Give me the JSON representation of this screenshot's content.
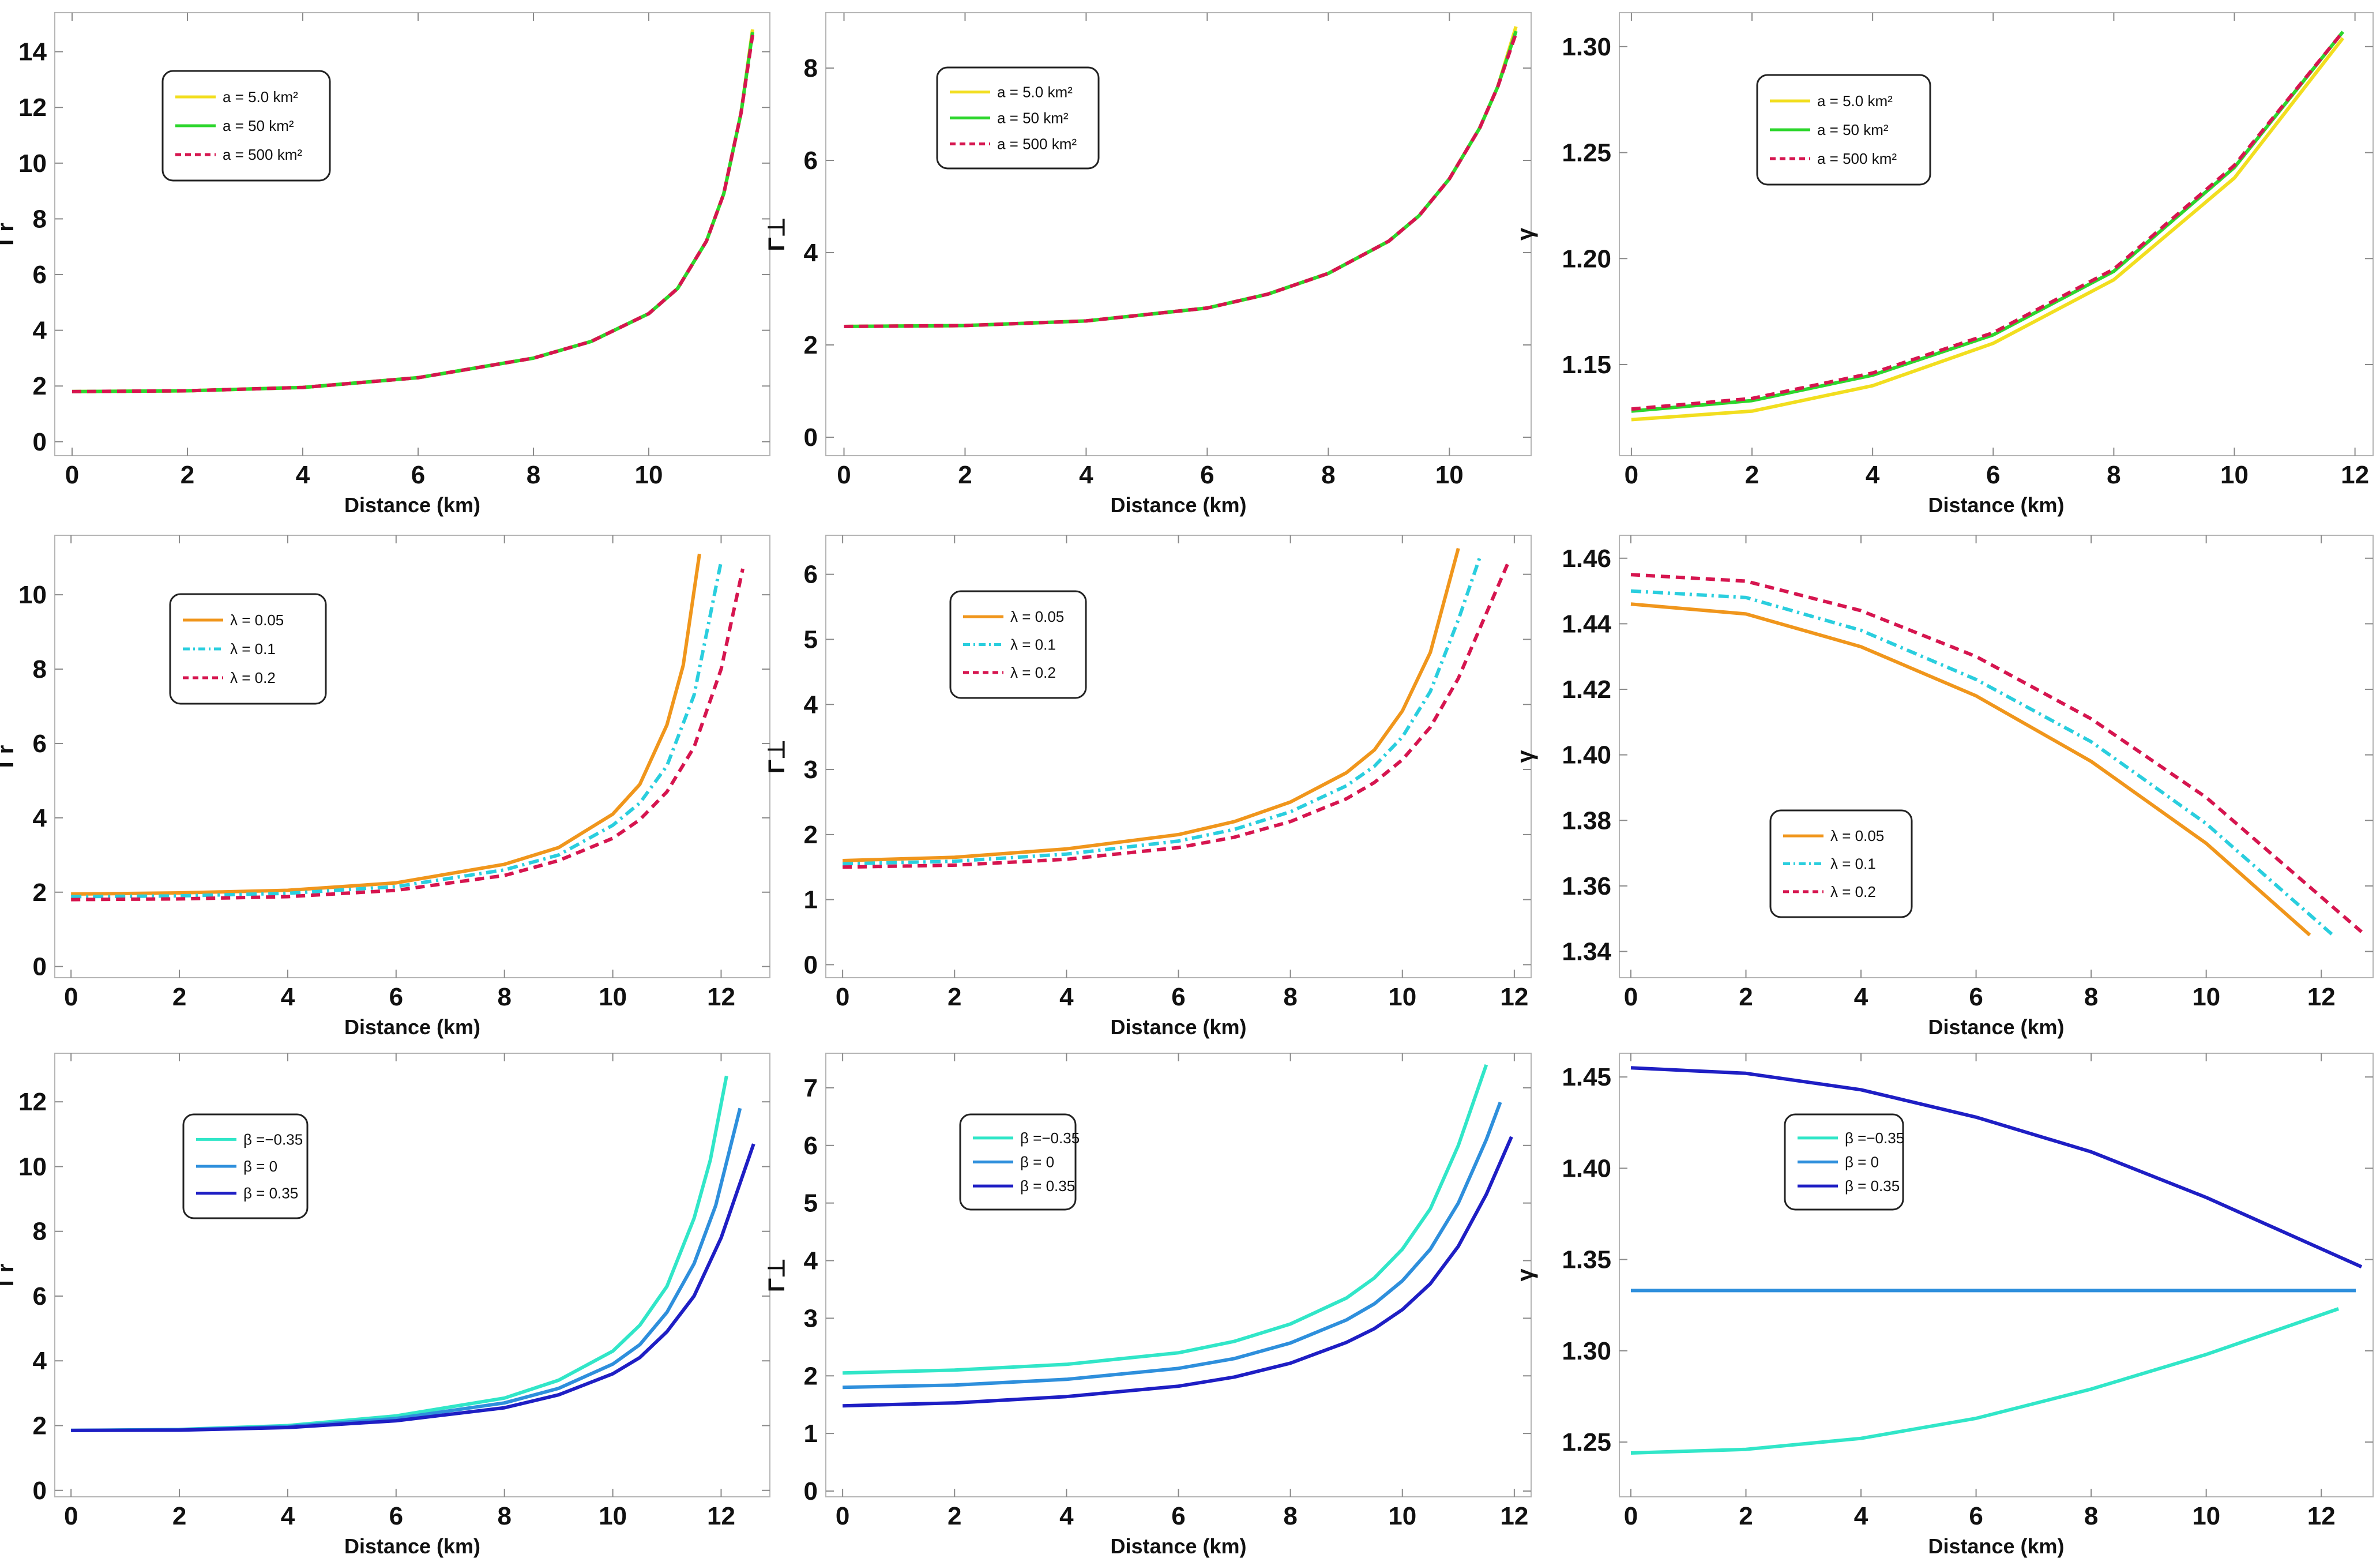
{
  "colors": {
    "yellow": "#F2DE1F",
    "green": "#2CD62C",
    "crimson": "#D6154F",
    "orange": "#F0961C",
    "cyan": "#2ACEDE",
    "aqua": "#31E6C8",
    "azure": "#2E8FDC",
    "navy": "#1E1EC4"
  },
  "chart_data": [
    {
      "type": "line",
      "ylabel": "Γr",
      "xlabel": "Distance (km)",
      "xlim": [
        -0.3,
        12.1
      ],
      "ylim": [
        -0.5,
        15.4
      ],
      "xticks": [
        0,
        2,
        4,
        6,
        8,
        10
      ],
      "yticks": [
        0,
        2,
        4,
        6,
        8,
        10,
        12,
        14
      ],
      "legend": "top-left",
      "series": [
        {
          "name": "a = 5.0 km²",
          "color": "#F2DE1F",
          "dash": "solid",
          "x": [
            0,
            2,
            4,
            6,
            8,
            9,
            10,
            10.5,
            11,
            11.3,
            11.6,
            11.8
          ],
          "y": [
            1.8,
            1.83,
            1.95,
            2.3,
            3.0,
            3.6,
            4.6,
            5.5,
            7.2,
            8.9,
            11.8,
            14.8
          ]
        },
        {
          "name": "a = 50 km²",
          "color": "#2CD62C",
          "dash": "solid",
          "x": [
            0,
            2,
            4,
            6,
            8,
            9,
            10,
            10.5,
            11,
            11.3,
            11.6,
            11.8
          ],
          "y": [
            1.8,
            1.83,
            1.95,
            2.3,
            3.0,
            3.6,
            4.6,
            5.5,
            7.2,
            8.9,
            11.8,
            14.7
          ]
        },
        {
          "name": "a = 500 km²",
          "color": "#D6154F",
          "dash": "dashed",
          "x": [
            0,
            2,
            4,
            6,
            8,
            9,
            10,
            10.5,
            11,
            11.3,
            11.6,
            11.8
          ],
          "y": [
            1.8,
            1.83,
            1.95,
            2.3,
            3.0,
            3.6,
            4.6,
            5.5,
            7.2,
            8.9,
            11.8,
            14.6
          ]
        }
      ]
    },
    {
      "type": "line",
      "ylabel": "Γ⊥",
      "xlabel": "Distance (km)",
      "xlim": [
        -0.3,
        11.35
      ],
      "ylim": [
        -0.4,
        9.2
      ],
      "xticks": [
        0,
        2,
        4,
        6,
        8,
        10
      ],
      "yticks": [
        0,
        2,
        4,
        6,
        8
      ],
      "legend": "top-left",
      "series": [
        {
          "name": "a = 5.0 km²",
          "color": "#F2DE1F",
          "dash": "solid",
          "x": [
            0,
            2,
            4,
            6,
            7,
            8,
            9,
            9.5,
            10,
            10.5,
            10.8,
            11.1
          ],
          "y": [
            2.4,
            2.42,
            2.52,
            2.8,
            3.1,
            3.55,
            4.25,
            4.8,
            5.6,
            6.7,
            7.6,
            8.9
          ]
        },
        {
          "name": "a = 50 km²",
          "color": "#2CD62C",
          "dash": "solid",
          "x": [
            0,
            2,
            4,
            6,
            7,
            8,
            9,
            9.5,
            10,
            10.5,
            10.8,
            11.1
          ],
          "y": [
            2.4,
            2.42,
            2.52,
            2.8,
            3.1,
            3.55,
            4.25,
            4.8,
            5.6,
            6.7,
            7.6,
            8.8
          ]
        },
        {
          "name": "a = 500 km²",
          "color": "#D6154F",
          "dash": "dashed",
          "x": [
            0,
            2,
            4,
            6,
            7,
            8,
            9,
            9.5,
            10,
            10.5,
            10.8,
            11.1
          ],
          "y": [
            2.4,
            2.42,
            2.52,
            2.8,
            3.1,
            3.55,
            4.25,
            4.8,
            5.6,
            6.7,
            7.6,
            8.75
          ]
        }
      ]
    },
    {
      "type": "line",
      "ylabel": "γ",
      "xlabel": "Distance (km)",
      "xlim": [
        -0.2,
        12.3
      ],
      "ylim": [
        1.107,
        1.316
      ],
      "xticks": [
        0,
        2,
        4,
        6,
        8,
        10,
        12
      ],
      "yticks": [
        1.15,
        1.2,
        1.25,
        1.3
      ],
      "legend": "top-left",
      "series": [
        {
          "name": "a = 5.0 km²",
          "color": "#F2DE1F",
          "dash": "solid",
          "x": [
            0,
            2,
            4,
            6,
            8,
            10,
            11.8
          ],
          "y": [
            1.124,
            1.128,
            1.14,
            1.16,
            1.19,
            1.238,
            1.304
          ]
        },
        {
          "name": "a = 50 km²",
          "color": "#2CD62C",
          "dash": "solid",
          "x": [
            0,
            2,
            4,
            6,
            8,
            10,
            11.8
          ],
          "y": [
            1.128,
            1.133,
            1.145,
            1.164,
            1.194,
            1.243,
            1.307
          ]
        },
        {
          "name": "a = 500 km²",
          "color": "#D6154F",
          "dash": "dashed",
          "x": [
            0,
            2,
            4,
            6,
            8,
            10,
            11.8
          ],
          "y": [
            1.129,
            1.134,
            1.146,
            1.165,
            1.195,
            1.244,
            1.307
          ]
        }
      ]
    },
    {
      "type": "line",
      "ylabel": "Γr",
      "xlabel": "Distance (km)",
      "xlim": [
        -0.3,
        12.9
      ],
      "ylim": [
        -0.3,
        11.6
      ],
      "xticks": [
        0,
        2,
        4,
        6,
        8,
        10,
        12
      ],
      "yticks": [
        0,
        2,
        4,
        6,
        8,
        10
      ],
      "legend": "top-left",
      "series": [
        {
          "name": "λ = 0.05",
          "color": "#F0961C",
          "dash": "solid",
          "x": [
            0,
            2,
            4,
            6,
            8,
            9,
            10,
            10.5,
            11,
            11.3,
            11.6
          ],
          "y": [
            1.95,
            1.98,
            2.05,
            2.25,
            2.75,
            3.2,
            4.1,
            4.9,
            6.5,
            8.1,
            11.1
          ]
        },
        {
          "name": "λ = 0.1",
          "color": "#2ACEDE",
          "dash": "dashdot",
          "x": [
            0,
            2,
            4,
            6,
            8,
            9,
            10,
            10.5,
            11,
            11.5,
            12.0
          ],
          "y": [
            1.88,
            1.9,
            1.97,
            2.15,
            2.6,
            3.0,
            3.8,
            4.4,
            5.4,
            7.3,
            10.9
          ]
        },
        {
          "name": "λ = 0.2",
          "color": "#D6154F",
          "dash": "dashed",
          "x": [
            0,
            2,
            4,
            6,
            8,
            9,
            10,
            10.5,
            11,
            11.5,
            12.0,
            12.4
          ],
          "y": [
            1.8,
            1.82,
            1.88,
            2.05,
            2.45,
            2.85,
            3.45,
            3.95,
            4.7,
            5.9,
            8.0,
            10.7
          ]
        }
      ]
    },
    {
      "type": "line",
      "ylabel": "Γ⊥",
      "xlabel": "Distance (km)",
      "xlim": [
        -0.3,
        12.3
      ],
      "ylim": [
        -0.2,
        6.6
      ],
      "xticks": [
        0,
        2,
        4,
        6,
        8,
        10,
        12
      ],
      "yticks": [
        0,
        1,
        2,
        3,
        4,
        5,
        6
      ],
      "legend": "top-left",
      "series": [
        {
          "name": "λ = 0.05",
          "color": "#F0961C",
          "dash": "solid",
          "x": [
            0,
            2,
            4,
            6,
            7,
            8,
            9,
            9.5,
            10,
            10.5,
            11.0
          ],
          "y": [
            1.6,
            1.65,
            1.78,
            2.0,
            2.2,
            2.5,
            2.95,
            3.3,
            3.9,
            4.8,
            6.4
          ]
        },
        {
          "name": "λ = 0.1",
          "color": "#2ACEDE",
          "dash": "dashdot",
          "x": [
            0,
            2,
            4,
            6,
            7,
            8,
            9,
            9.5,
            10,
            10.5,
            11.0,
            11.4
          ],
          "y": [
            1.55,
            1.59,
            1.7,
            1.9,
            2.08,
            2.35,
            2.75,
            3.05,
            3.5,
            4.2,
            5.3,
            6.3
          ]
        },
        {
          "name": "λ = 0.2",
          "color": "#D6154F",
          "dash": "dashed",
          "x": [
            0,
            2,
            4,
            6,
            7,
            8,
            9,
            9.5,
            10,
            10.5,
            11.0,
            11.5,
            11.9
          ],
          "y": [
            1.5,
            1.53,
            1.62,
            1.8,
            1.96,
            2.2,
            2.55,
            2.8,
            3.15,
            3.65,
            4.4,
            5.4,
            6.2
          ]
        }
      ]
    },
    {
      "type": "line",
      "ylabel": "γ",
      "xlabel": "Distance (km)",
      "xlim": [
        -0.2,
        12.9
      ],
      "ylim": [
        1.332,
        1.467
      ],
      "xticks": [
        0,
        2,
        4,
        6,
        8,
        10,
        12
      ],
      "yticks": [
        1.34,
        1.36,
        1.38,
        1.4,
        1.42,
        1.44,
        1.46
      ],
      "legend": "bottom-left",
      "series": [
        {
          "name": "λ = 0.05",
          "color": "#F0961C",
          "dash": "solid",
          "x": [
            0,
            2,
            4,
            6,
            8,
            10,
            11.8
          ],
          "y": [
            1.446,
            1.443,
            1.433,
            1.418,
            1.398,
            1.373,
            1.345
          ]
        },
        {
          "name": "λ = 0.1",
          "color": "#2ACEDE",
          "dash": "dashdot",
          "x": [
            0,
            2,
            4,
            6,
            8,
            10,
            12.2
          ],
          "y": [
            1.45,
            1.448,
            1.438,
            1.423,
            1.404,
            1.379,
            1.345
          ]
        },
        {
          "name": "λ = 0.2",
          "color": "#D6154F",
          "dash": "dashed",
          "x": [
            0,
            2,
            4,
            6,
            8,
            10,
            12.7
          ],
          "y": [
            1.455,
            1.453,
            1.444,
            1.43,
            1.411,
            1.387,
            1.346
          ]
        }
      ]
    },
    {
      "type": "line",
      "ylabel": "Γr",
      "xlabel": "Distance (km)",
      "xlim": [
        -0.3,
        12.9
      ],
      "ylim": [
        -0.2,
        13.5
      ],
      "xticks": [
        0,
        2,
        4,
        6,
        8,
        10,
        12
      ],
      "yticks": [
        0,
        2,
        4,
        6,
        8,
        10,
        12
      ],
      "legend": "top-left",
      "series": [
        {
          "name": "β =−0.35",
          "color": "#31E6C8",
          "dash": "solid",
          "x": [
            0,
            2,
            4,
            6,
            8,
            9,
            10,
            10.5,
            11,
            11.5,
            11.8,
            12.1
          ],
          "y": [
            1.85,
            1.88,
            2.0,
            2.3,
            2.85,
            3.4,
            4.3,
            5.1,
            6.3,
            8.4,
            10.2,
            12.8
          ]
        },
        {
          "name": "β = 0",
          "color": "#2E8FDC",
          "dash": "solid",
          "x": [
            0,
            2,
            4,
            6,
            8,
            9,
            10,
            10.5,
            11,
            11.5,
            11.9,
            12.35
          ],
          "y": [
            1.85,
            1.87,
            1.97,
            2.22,
            2.7,
            3.15,
            3.9,
            4.5,
            5.5,
            7.0,
            8.8,
            11.8
          ]
        },
        {
          "name": "β = 0.35",
          "color": "#1E1EC4",
          "dash": "solid",
          "x": [
            0,
            2,
            4,
            6,
            8,
            9,
            10,
            10.5,
            11,
            11.5,
            12.0,
            12.6
          ],
          "y": [
            1.85,
            1.86,
            1.94,
            2.15,
            2.55,
            2.95,
            3.6,
            4.1,
            4.9,
            6.0,
            7.8,
            10.7
          ]
        }
      ]
    },
    {
      "type": "line",
      "ylabel": "Γ⊥",
      "xlabel": "Distance (km)",
      "xlim": [
        -0.3,
        12.3
      ],
      "ylim": [
        -0.1,
        7.6
      ],
      "xticks": [
        0,
        2,
        4,
        6,
        8,
        10,
        12
      ],
      "yticks": [
        0,
        1,
        2,
        3,
        4,
        5,
        6,
        7
      ],
      "legend": "top-left",
      "series": [
        {
          "name": "β =−0.35",
          "color": "#31E6C8",
          "dash": "solid",
          "x": [
            0,
            2,
            4,
            6,
            7,
            8,
            9,
            9.5,
            10,
            10.5,
            11.0,
            11.5
          ],
          "y": [
            2.05,
            2.1,
            2.2,
            2.4,
            2.6,
            2.9,
            3.35,
            3.7,
            4.2,
            4.9,
            6.0,
            7.4
          ]
        },
        {
          "name": "β = 0",
          "color": "#2E8FDC",
          "dash": "solid",
          "x": [
            0,
            2,
            4,
            6,
            7,
            8,
            9,
            9.5,
            10,
            10.5,
            11.0,
            11.5,
            11.75
          ],
          "y": [
            1.8,
            1.84,
            1.94,
            2.13,
            2.3,
            2.57,
            2.97,
            3.25,
            3.65,
            4.2,
            5.0,
            6.1,
            6.75
          ]
        },
        {
          "name": "β = 0.35",
          "color": "#1E1EC4",
          "dash": "solid",
          "x": [
            0,
            2,
            4,
            6,
            7,
            8,
            9,
            9.5,
            10,
            10.5,
            11.0,
            11.5,
            11.95
          ],
          "y": [
            1.48,
            1.53,
            1.64,
            1.82,
            1.98,
            2.22,
            2.58,
            2.82,
            3.15,
            3.6,
            4.25,
            5.15,
            6.15
          ]
        }
      ]
    },
    {
      "type": "line",
      "ylabel": "γ",
      "xlabel": "Distance (km)",
      "xlim": [
        -0.2,
        12.9
      ],
      "ylim": [
        1.22,
        1.463
      ],
      "xticks": [
        0,
        2,
        4,
        6,
        8,
        10,
        12
      ],
      "yticks": [
        1.25,
        1.3,
        1.35,
        1.4,
        1.45
      ],
      "legend": "top-left",
      "series": [
        {
          "name": "β =−0.35",
          "color": "#31E6C8",
          "dash": "solid",
          "x": [
            0,
            2,
            4,
            6,
            8,
            10,
            12.3
          ],
          "y": [
            1.244,
            1.246,
            1.252,
            1.263,
            1.279,
            1.298,
            1.323
          ]
        },
        {
          "name": "β = 0",
          "color": "#2E8FDC",
          "dash": "solid",
          "x": [
            0,
            12.6
          ],
          "y": [
            1.333,
            1.333
          ]
        },
        {
          "name": "β = 0.35",
          "color": "#1E1EC4",
          "dash": "solid",
          "x": [
            0,
            2,
            4,
            6,
            8,
            10,
            12.7
          ],
          "y": [
            1.455,
            1.452,
            1.443,
            1.428,
            1.409,
            1.384,
            1.346
          ]
        }
      ]
    }
  ]
}
